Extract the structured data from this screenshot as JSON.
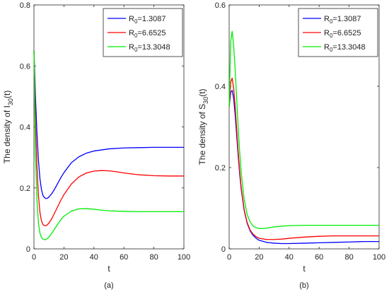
{
  "chart_data": [
    {
      "type": "line",
      "panel_label": "(a)",
      "xlabel": "t",
      "ylabel_prefix": "The density of I",
      "ylabel_sub": "30",
      "ylabel_suffix": "(t)",
      "xlim": [
        0,
        100
      ],
      "ylim": [
        0,
        0.8
      ],
      "xticks": [
        0,
        20,
        40,
        60,
        80,
        100
      ],
      "yticks": [
        0,
        0.2,
        0.4,
        0.6,
        0.8
      ],
      "ytick_labels": [
        "0",
        "0.2",
        "0.4",
        "0.6",
        "0.8"
      ],
      "legend_position": "top-right",
      "series": [
        {
          "name": "R0=1.3087",
          "legend_prefix": "R",
          "legend_sub": "0",
          "legend_value": "=1.3087",
          "color": "#0000ff",
          "x": [
            0,
            1,
            2,
            3,
            4,
            5,
            6,
            7,
            8,
            9,
            10,
            12,
            14,
            16,
            18,
            20,
            25,
            30,
            35,
            40,
            50,
            60,
            70,
            80,
            90,
            100
          ],
          "y": [
            0.65,
            0.5,
            0.38,
            0.29,
            0.23,
            0.195,
            0.175,
            0.168,
            0.165,
            0.166,
            0.17,
            0.182,
            0.198,
            0.216,
            0.234,
            0.25,
            0.283,
            0.302,
            0.314,
            0.321,
            0.328,
            0.331,
            0.332,
            0.333,
            0.333,
            0.333
          ]
        },
        {
          "name": "R0=6.6525",
          "legend_prefix": "R",
          "legend_sub": "0",
          "legend_value": "=6.6525",
          "color": "#ff0000",
          "x": [
            0,
            1,
            2,
            3,
            4,
            5,
            6,
            7,
            8,
            9,
            10,
            12,
            14,
            16,
            18,
            20,
            25,
            30,
            35,
            40,
            45,
            50,
            55,
            60,
            70,
            80,
            90,
            100
          ],
          "y": [
            0.65,
            0.42,
            0.27,
            0.175,
            0.12,
            0.092,
            0.08,
            0.076,
            0.076,
            0.079,
            0.085,
            0.1,
            0.12,
            0.14,
            0.16,
            0.178,
            0.213,
            0.236,
            0.249,
            0.255,
            0.257,
            0.256,
            0.253,
            0.249,
            0.243,
            0.24,
            0.239,
            0.239
          ]
        },
        {
          "name": "R0=13.3048",
          "legend_prefix": "R",
          "legend_sub": "0",
          "legend_value": "=13.3048",
          "color": "#00ee00",
          "x": [
            0,
            1,
            2,
            3,
            4,
            5,
            6,
            7,
            8,
            9,
            10,
            12,
            14,
            16,
            18,
            20,
            25,
            30,
            35,
            40,
            45,
            50,
            60,
            70,
            80,
            90,
            100
          ],
          "y": [
            0.65,
            0.32,
            0.16,
            0.085,
            0.052,
            0.038,
            0.032,
            0.03,
            0.031,
            0.034,
            0.039,
            0.052,
            0.067,
            0.082,
            0.096,
            0.107,
            0.124,
            0.131,
            0.132,
            0.13,
            0.127,
            0.125,
            0.123,
            0.122,
            0.122,
            0.122,
            0.122
          ]
        }
      ]
    },
    {
      "type": "line",
      "panel_label": "(b)",
      "xlabel": "t",
      "ylabel_prefix": "The density of S",
      "ylabel_sub": "30",
      "ylabel_suffix": "(t)",
      "xlim": [
        0,
        100
      ],
      "ylim": [
        0,
        0.6
      ],
      "xticks": [
        0,
        20,
        40,
        60,
        80,
        100
      ],
      "yticks": [
        0,
        0.2,
        0.4,
        0.6
      ],
      "ytick_labels": [
        "0",
        "0.2",
        "0.4",
        "0.6"
      ],
      "legend_position": "top-right",
      "series": [
        {
          "name": "R0=1.3087",
          "legend_prefix": "R",
          "legend_sub": "0",
          "legend_value": "=1.3087",
          "color": "#0000ff",
          "x": [
            0,
            1,
            2,
            3,
            4,
            5,
            6,
            7,
            8,
            10,
            12,
            14,
            16,
            18,
            20,
            25,
            30,
            35,
            40,
            50,
            60,
            70,
            80,
            90,
            100
          ],
          "y": [
            0.35,
            0.385,
            0.39,
            0.37,
            0.33,
            0.28,
            0.23,
            0.185,
            0.148,
            0.095,
            0.063,
            0.044,
            0.033,
            0.026,
            0.021,
            0.016,
            0.014,
            0.013,
            0.013,
            0.014,
            0.015,
            0.016,
            0.017,
            0.018,
            0.018
          ]
        },
        {
          "name": "R0=6.6525",
          "legend_prefix": "R",
          "legend_sub": "0",
          "legend_value": "=6.6525",
          "color": "#ff0000",
          "x": [
            0,
            1,
            2,
            3,
            4,
            5,
            6,
            7,
            8,
            10,
            12,
            14,
            16,
            18,
            20,
            25,
            30,
            35,
            40,
            50,
            60,
            70,
            80,
            90,
            100
          ],
          "y": [
            0.35,
            0.41,
            0.42,
            0.395,
            0.35,
            0.295,
            0.24,
            0.192,
            0.152,
            0.097,
            0.065,
            0.046,
            0.036,
            0.03,
            0.026,
            0.023,
            0.023,
            0.024,
            0.026,
            0.029,
            0.031,
            0.032,
            0.032,
            0.032,
            0.032
          ]
        },
        {
          "name": "R0=13.3048",
          "legend_prefix": "R",
          "legend_sub": "0",
          "legend_value": "=13.3048",
          "color": "#00ee00",
          "x": [
            0,
            1,
            2,
            3,
            4,
            5,
            6,
            7,
            8,
            10,
            12,
            14,
            16,
            18,
            20,
            22,
            25,
            30,
            35,
            40,
            50,
            60,
            70,
            80,
            90,
            100
          ],
          "y": [
            0.35,
            0.51,
            0.535,
            0.5,
            0.44,
            0.37,
            0.3,
            0.24,
            0.19,
            0.122,
            0.085,
            0.066,
            0.056,
            0.052,
            0.05,
            0.05,
            0.051,
            0.054,
            0.056,
            0.057,
            0.058,
            0.058,
            0.058,
            0.058,
            0.058,
            0.058
          ]
        }
      ]
    }
  ]
}
